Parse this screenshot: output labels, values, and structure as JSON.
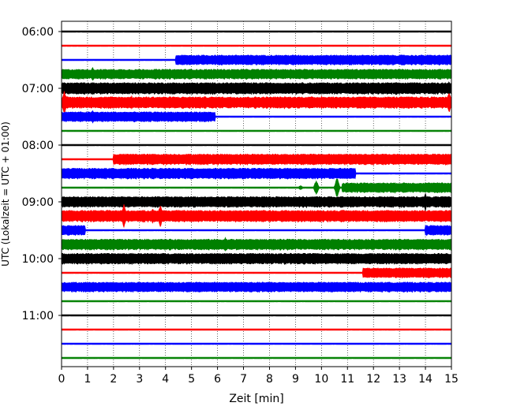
{
  "chart_data": {
    "type": "line",
    "title": "",
    "xlabel": "Zeit  [min]",
    "ylabel": "UTC (Lokalzeit = UTC + 01:00)",
    "xlim": [
      0,
      15
    ],
    "x_ticks": [
      0,
      1,
      2,
      3,
      4,
      5,
      6,
      7,
      8,
      9,
      10,
      11,
      12,
      13,
      14,
      15
    ],
    "y_ticks": [
      "06:00",
      "07:00",
      "08:00",
      "09:00",
      "10:00",
      "11:00"
    ],
    "grid": "vertical dotted",
    "color_cycle": [
      "#000000",
      "#ff0000",
      "#0000ff",
      "#008000"
    ],
    "traces": [
      {
        "time": "06:00",
        "color": "#000000",
        "amplitude": 0.5,
        "segments": [],
        "spikes": []
      },
      {
        "time": "06:15",
        "color": "#ff0000",
        "amplitude": 0.5,
        "segments": [],
        "spikes": []
      },
      {
        "time": "06:30",
        "color": "#0000ff",
        "amplitude": 1,
        "segments": [
          [
            4.4,
            15,
            12
          ]
        ],
        "spikes": [
          [
            11.0,
            15
          ]
        ]
      },
      {
        "time": "06:45",
        "color": "#008000",
        "amplitude": 12,
        "segments": [],
        "spikes": [
          [
            1.2,
            18
          ]
        ]
      },
      {
        "time": "07:00",
        "color": "#000000",
        "amplitude": 14,
        "segments": [],
        "spikes": [
          [
            14.9,
            16
          ]
        ]
      },
      {
        "time": "07:15",
        "color": "#ff0000",
        "amplitude": 14,
        "segments": [],
        "spikes": [
          [
            0.1,
            30
          ],
          [
            2.7,
            18
          ],
          [
            10.0,
            18
          ],
          [
            11.0,
            16
          ],
          [
            14.9,
            28
          ]
        ]
      },
      {
        "time": "07:30",
        "color": "#0000ff",
        "amplitude": 1,
        "segments": [
          [
            0,
            5.9,
            12
          ]
        ],
        "spikes": [
          [
            1.2,
            16
          ]
        ]
      },
      {
        "time": "07:45",
        "color": "#008000",
        "amplitude": 1,
        "segments": [],
        "spikes": []
      },
      {
        "time": "08:00",
        "color": "#000000",
        "amplitude": 1,
        "segments": [],
        "spikes": []
      },
      {
        "time": "08:15",
        "color": "#ff0000",
        "amplitude": 1,
        "segments": [
          [
            2.0,
            15,
            13
          ]
        ],
        "spikes": []
      },
      {
        "time": "08:30",
        "color": "#0000ff",
        "amplitude": 1,
        "segments": [
          [
            0,
            11.3,
            13
          ]
        ],
        "spikes": []
      },
      {
        "time": "08:45",
        "color": "#008000",
        "amplitude": 1,
        "segments": [
          [
            10.8,
            15,
            12
          ]
        ],
        "spikes": [
          [
            9.8,
            20
          ],
          [
            10.6,
            26
          ],
          [
            9.2,
            6
          ]
        ]
      },
      {
        "time": "09:00",
        "color": "#000000",
        "amplitude": 13,
        "segments": [],
        "spikes": [
          [
            14.0,
            22
          ]
        ]
      },
      {
        "time": "09:15",
        "color": "#ff0000",
        "amplitude": 14,
        "segments": [],
        "spikes": [
          [
            0.1,
            16
          ],
          [
            2.4,
            30
          ],
          [
            3.5,
            20
          ],
          [
            3.8,
            30
          ]
        ]
      },
      {
        "time": "09:30",
        "color": "#0000ff",
        "amplitude": 1,
        "segments": [
          [
            0,
            0.9,
            12
          ],
          [
            14.0,
            15,
            12
          ]
        ],
        "spikes": []
      },
      {
        "time": "09:45",
        "color": "#008000",
        "amplitude": 13,
        "segments": [],
        "spikes": [
          [
            6.3,
            18
          ]
        ]
      },
      {
        "time": "10:00",
        "color": "#000000",
        "amplitude": 13,
        "segments": [],
        "spikes": []
      },
      {
        "time": "10:15",
        "color": "#ff0000",
        "amplitude": 1,
        "segments": [
          [
            11.6,
            15,
            12
          ]
        ],
        "spikes": []
      },
      {
        "time": "10:30",
        "color": "#0000ff",
        "amplitude": 12,
        "segments": [
          [
            0,
            14.3,
            12
          ]
        ],
        "spikes": []
      },
      {
        "time": "10:45",
        "color": "#008000",
        "amplitude": 1,
        "segments": [],
        "spikes": []
      },
      {
        "time": "11:00",
        "color": "#000000",
        "amplitude": 1,
        "segments": [],
        "spikes": []
      },
      {
        "time": "11:15",
        "color": "#ff0000",
        "amplitude": 1,
        "segments": [],
        "spikes": []
      },
      {
        "time": "11:30",
        "color": "#0000ff",
        "amplitude": 1,
        "segments": [],
        "spikes": []
      },
      {
        "time": "11:45",
        "color": "#008000",
        "amplitude": 1,
        "segments": [],
        "spikes": []
      }
    ]
  }
}
